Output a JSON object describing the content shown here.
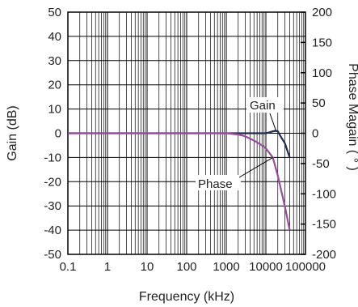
{
  "chart_data": {
    "type": "line",
    "xlabel": "Frequency (kHz)",
    "ylabel_left": "Gain (dB)",
    "ylabel_right": "Phase Magain ( ° )",
    "x_scale": "log",
    "xlim": [
      0.1,
      100000
    ],
    "ylim_left": [
      -50,
      50
    ],
    "ylim_right": [
      -200,
      200
    ],
    "grid": true,
    "x_ticks": [
      0.1,
      1,
      10,
      100,
      1000,
      10000,
      100000
    ],
    "x_tick_labels": [
      "0.1",
      "1",
      "10",
      "100",
      "1000",
      "10000",
      "100000"
    ],
    "y_left_ticks": [
      50,
      40,
      30,
      20,
      10,
      0,
      -10,
      -20,
      -30,
      -40,
      -50
    ],
    "y_left_tick_labels": [
      "50",
      "40",
      "30",
      "20",
      "10",
      "0",
      "-10",
      "-20",
      "-30",
      "-40",
      "-50"
    ],
    "y_right_ticks": [
      200,
      150,
      100,
      50,
      0,
      -50,
      -100,
      -150,
      -200
    ],
    "y_right_tick_labels": [
      "200",
      "150",
      "100",
      "50",
      "0",
      "-50",
      "-100",
      "-150",
      "-200"
    ],
    "series": [
      {
        "name": "Gain",
        "axis": "left",
        "color": "#1f2a4d",
        "x": [
          0.1,
          1000,
          3000,
          8000,
          10000,
          12000,
          15000,
          18000,
          20000,
          25000,
          30000,
          40000
        ],
        "y": [
          0,
          0,
          0,
          0,
          0,
          0.3,
          0.8,
          1,
          0.8,
          -2,
          -4,
          -10
        ]
      },
      {
        "name": "Phase",
        "axis": "right",
        "color": "#9a4b9e",
        "x": [
          0.1,
          1000,
          2000,
          3000,
          5000,
          8000,
          10000,
          15000,
          20000,
          30000,
          40000
        ],
        "y": [
          0,
          0,
          -2,
          -5,
          -12,
          -20,
          -25,
          -40,
          -70,
          -120,
          -160
        ]
      }
    ],
    "annotations": [
      {
        "text": "Gain",
        "series": "Gain"
      },
      {
        "text": "Phase",
        "series": "Phase"
      }
    ]
  }
}
